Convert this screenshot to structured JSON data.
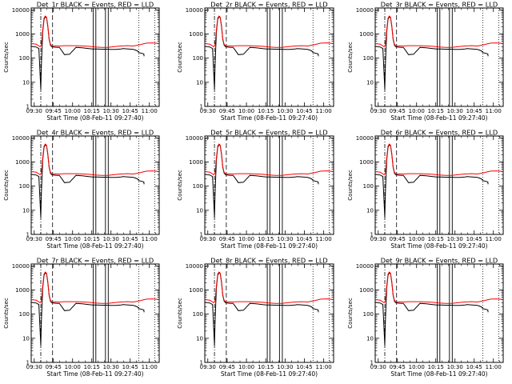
{
  "colors": {
    "events": "#000000",
    "lld": "#ff0000",
    "background": "#ffffff"
  },
  "chart_data": [
    {
      "type": "line",
      "title": "Det_1r BLACK = Events, RED = LLD"
    },
    {
      "type": "line",
      "title": "Det_2r BLACK = Events, RED = LLD"
    },
    {
      "type": "line",
      "title": "Det_3r BLACK = Events, RED = LLD"
    },
    {
      "type": "line",
      "title": "Det_4r BLACK = Events, RED = LLD"
    },
    {
      "type": "line",
      "title": "Det_5r BLACK = Events, RED = LLD"
    },
    {
      "type": "line",
      "title": "Det_6r BLACK = Events, RED = LLD"
    },
    {
      "type": "line",
      "title": "Det_7r BLACK = Events, RED = LLD"
    },
    {
      "type": "line",
      "title": "Det_8r BLACK = Events, RED = LLD"
    },
    {
      "type": "line",
      "title": "Det_9r BLACK = Events, RED = LLD"
    }
  ],
  "shared": {
    "xlabel": "Start Time (08-Feb-11 09:27:40)",
    "ylabel": "Counts/sec",
    "x_ticks": [
      "09:30",
      "09:45",
      "10:00",
      "10:15",
      "10:30",
      "10:45",
      "11:00"
    ],
    "x_tick_minutes": [
      2.33,
      17.33,
      32.33,
      47.33,
      62.33,
      77.33,
      92.33
    ],
    "xlim_minutes": [
      0,
      100
    ],
    "y_scale": "log",
    "y_ticks": [
      "1",
      "10",
      "100",
      "1000",
      "10000"
    ],
    "ylim": [
      1,
      12000
    ],
    "markers": {
      "dash_dot": [
        7.5
      ],
      "dashed": [
        16.7
      ],
      "solid_pairs": [
        [
          48.5,
          50.5
        ],
        [
          58.0,
          60.2
        ]
      ],
      "dotted": [
        84.0,
        96.5
      ]
    },
    "series": [
      {
        "name": "Events",
        "x": [
          0,
          4,
          6,
          7.5,
          8,
          9,
          10,
          11,
          12,
          13,
          14,
          15,
          16,
          17,
          20,
          22,
          24,
          26,
          30,
          35,
          40,
          45,
          48,
          51,
          55,
          58,
          62,
          66,
          70,
          72,
          76,
          80,
          83,
          84,
          88,
          88.2
        ],
        "y": [
          310,
          290,
          250,
          5,
          60,
          1200,
          4000,
          5200,
          4800,
          2000,
          600,
          350,
          300,
          290,
          280,
          280,
          200,
          140,
          145,
          280,
          270,
          250,
          240,
          240,
          235,
          235,
          230,
          230,
          240,
          250,
          240,
          230,
          200,
          170,
          150,
          120
        ]
      },
      {
        "name": "LLD",
        "x": [
          0,
          4,
          6,
          7,
          8,
          9,
          10,
          11,
          12,
          13,
          14,
          15,
          16,
          18,
          22,
          26,
          30,
          35,
          40,
          45,
          50,
          55,
          60,
          65,
          70,
          75,
          80,
          85,
          90,
          95,
          100
        ],
        "y": [
          400,
          380,
          320,
          300,
          360,
          1500,
          4500,
          5600,
          5000,
          2200,
          650,
          380,
          330,
          320,
          320,
          330,
          330,
          330,
          320,
          310,
          290,
          280,
          280,
          300,
          320,
          330,
          320,
          360,
          420,
          430,
          400
        ]
      }
    ]
  }
}
